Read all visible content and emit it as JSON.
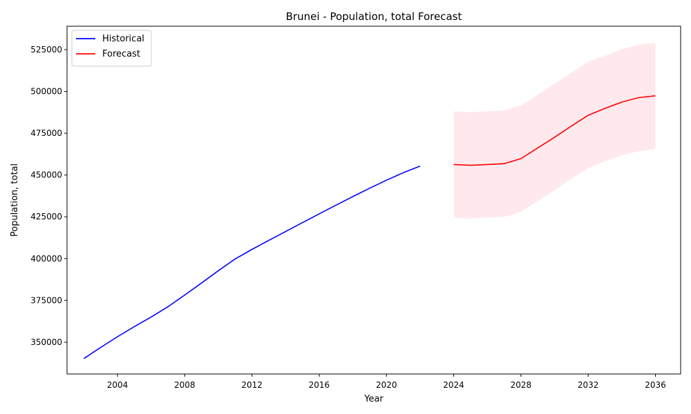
{
  "chart_data": {
    "type": "line",
    "title": "Brunei - Population, total Forecast",
    "xlabel": "Year",
    "ylabel": "Population, total",
    "xlim": [
      2001,
      2037.5
    ],
    "ylim": [
      331000,
      539000
    ],
    "xticks": [
      2004,
      2008,
      2012,
      2016,
      2020,
      2024,
      2028,
      2032,
      2036
    ],
    "yticks": [
      350000,
      375000,
      400000,
      425000,
      450000,
      475000,
      500000,
      525000
    ],
    "grid": false,
    "legend_position": "upper-left",
    "series": [
      {
        "name": "Historical",
        "color": "#0000ff",
        "x": [
          2002,
          2003,
          2004,
          2005,
          2006,
          2007,
          2008,
          2009,
          2010,
          2011,
          2012,
          2013,
          2014,
          2015,
          2016,
          2017,
          2018,
          2019,
          2020,
          2021,
          2022
        ],
        "y": [
          340200,
          346900,
          353300,
          359300,
          365000,
          371200,
          378200,
          385400,
          392800,
          399800,
          405500,
          410900,
          416200,
          421500,
          426800,
          432000,
          437100,
          442100,
          446900,
          451400,
          455300
        ]
      },
      {
        "name": "Forecast",
        "color": "#ff0000",
        "band_color": "#ffc0cb",
        "x": [
          2024,
          2025,
          2026,
          2027,
          2028,
          2029,
          2030,
          2031,
          2032,
          2033,
          2034,
          2035,
          2036
        ],
        "y": [
          456300,
          455800,
          456300,
          456800,
          459800,
          466200,
          472600,
          479300,
          485700,
          489900,
          493600,
          496300,
          497400
        ],
        "lower": [
          424500,
          424000,
          424500,
          425000,
          428000,
          434500,
          441000,
          447800,
          454300,
          458200,
          461800,
          464300,
          465500
        ],
        "upper": [
          488100,
          487600,
          488100,
          488600,
          491600,
          498000,
          504500,
          511200,
          517700,
          521400,
          525200,
          528000,
          529100
        ]
      }
    ]
  }
}
